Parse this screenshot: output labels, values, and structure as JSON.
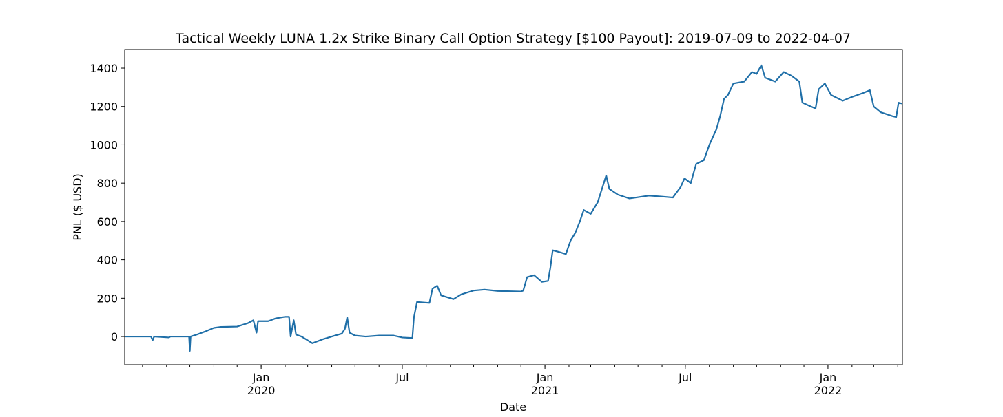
{
  "chart_data": {
    "type": "line",
    "title": "Tactical Weekly LUNA 1.2x Strike Binary Call Option Strategy [$100 Payout]: 2019-07-09 to 2022-04-07",
    "x_label": "Date",
    "y_label": "PNL ($ USD)",
    "xlim": [
      "2019-07-09",
      "2022-04-07"
    ],
    "ylim": [
      -147,
      1497
    ],
    "yticks": [
      0,
      200,
      400,
      600,
      800,
      1000,
      1200,
      1400
    ],
    "xticks": [
      {
        "value": "2020-01-01",
        "label": "Jan\n2020"
      },
      {
        "value": "2020-07-01",
        "label": "Jul"
      },
      {
        "value": "2021-01-01",
        "label": "Jan\n2021"
      },
      {
        "value": "2021-07-01",
        "label": "Jul"
      },
      {
        "value": "2022-01-01",
        "label": "Jan\n2022"
      }
    ],
    "grid": false,
    "x": [
      "2019-07-09",
      "2019-08-12",
      "2019-08-14",
      "2019-08-16",
      "2019-09-04",
      "2019-09-06",
      "2019-09-30",
      "2019-10-01",
      "2019-10-02",
      "2019-10-10",
      "2019-10-20",
      "2019-11-01",
      "2019-11-10",
      "2019-12-01",
      "2019-12-15",
      "2019-12-22",
      "2019-12-26",
      "2019-12-28",
      "2020-01-10",
      "2020-01-20",
      "2020-02-01",
      "2020-02-06",
      "2020-02-08",
      "2020-02-12",
      "2020-02-15",
      "2020-02-22",
      "2020-03-01",
      "2020-03-07",
      "2020-03-20",
      "2020-04-01",
      "2020-04-14",
      "2020-04-18",
      "2020-04-21",
      "2020-04-24",
      "2020-05-01",
      "2020-05-15",
      "2020-06-01",
      "2020-06-20",
      "2020-07-01",
      "2020-07-14",
      "2020-07-16",
      "2020-07-20",
      "2020-08-05",
      "2020-08-09",
      "2020-08-15",
      "2020-08-20",
      "2020-09-01",
      "2020-09-05",
      "2020-09-15",
      "2020-10-01",
      "2020-10-15",
      "2020-11-01",
      "2020-12-01",
      "2020-12-04",
      "2020-12-09",
      "2020-12-18",
      "2020-12-28",
      "2021-01-05",
      "2021-01-08",
      "2021-01-11",
      "2021-01-20",
      "2021-01-28",
      "2021-02-03",
      "2021-02-09",
      "2021-02-15",
      "2021-02-20",
      "2021-03-01",
      "2021-03-10",
      "2021-03-21",
      "2021-03-25",
      "2021-04-05",
      "2021-04-20",
      "2021-05-15",
      "2021-06-01",
      "2021-06-15",
      "2021-06-25",
      "2021-06-30",
      "2021-07-08",
      "2021-07-15",
      "2021-07-25",
      "2021-08-01",
      "2021-08-10",
      "2021-08-15",
      "2021-08-20",
      "2021-08-25",
      "2021-09-01",
      "2021-09-15",
      "2021-09-25",
      "2021-10-01",
      "2021-10-07",
      "2021-10-12",
      "2021-10-25",
      "2021-11-05",
      "2021-11-15",
      "2021-11-25",
      "2021-11-29",
      "2021-12-10",
      "2021-12-16",
      "2021-12-20",
      "2021-12-28",
      "2022-01-05",
      "2022-01-20",
      "2022-02-01",
      "2022-02-15",
      "2022-02-24",
      "2022-03-01",
      "2022-03-10",
      "2022-03-25",
      "2022-03-30",
      "2022-04-02",
      "2022-04-07"
    ],
    "series": [
      {
        "name": "PNL",
        "color": "#1f6fa8",
        "values": [
          0,
          0,
          -20,
          0,
          -5,
          0,
          0,
          -75,
          0,
          10,
          25,
          45,
          50,
          52,
          70,
          85,
          20,
          80,
          80,
          95,
          103,
          103,
          0,
          85,
          10,
          0,
          -20,
          -35,
          -15,
          0,
          15,
          40,
          100,
          20,
          5,
          0,
          5,
          5,
          -5,
          -8,
          100,
          180,
          175,
          250,
          265,
          215,
          200,
          195,
          220,
          240,
          245,
          238,
          235,
          240,
          310,
          320,
          285,
          290,
          360,
          450,
          440,
          430,
          500,
          540,
          600,
          660,
          640,
          700,
          840,
          770,
          740,
          720,
          735,
          730,
          725,
          780,
          825,
          800,
          900,
          920,
          1000,
          1080,
          1150,
          1240,
          1260,
          1320,
          1330,
          1380,
          1370,
          1415,
          1350,
          1330,
          1380,
          1360,
          1330,
          1220,
          1200,
          1190,
          1290,
          1320,
          1260,
          1230,
          1250,
          1270,
          1285,
          1200,
          1170,
          1150,
          1145,
          1220,
          1215
        ]
      }
    ]
  }
}
